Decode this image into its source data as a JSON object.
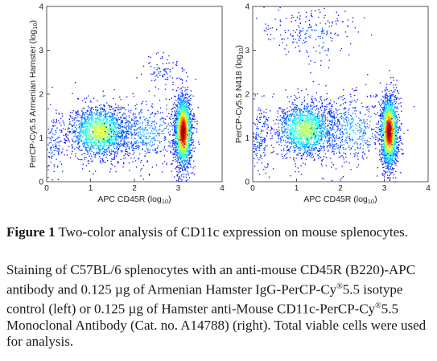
{
  "chart_data": [
    {
      "type": "scatter",
      "subtype": "flow-cytometry-density-dot-plot",
      "xlabel": "APC CD45R (log",
      "xlabel_sub": "10",
      "xlabel_end": ")",
      "ylabel": "PerCP-Cy5.5 Armenian Hamster (log",
      "ylabel_sub": "10",
      "ylabel_end": ")",
      "xlim": [
        0,
        4
      ],
      "ylim": [
        0,
        4
      ],
      "xticks": [
        "0",
        "1",
        "2",
        "3",
        "4"
      ],
      "yticks": [
        "0",
        "1",
        "2",
        "3",
        "4"
      ],
      "populations": [
        {
          "x": 1.2,
          "y": 1.15,
          "sx": 0.35,
          "sy": 0.3,
          "weight": 0.38,
          "density": 0.55
        },
        {
          "x": 3.1,
          "y": 1.15,
          "sx": 0.1,
          "sy": 0.42,
          "weight": 0.45,
          "density": 1.0
        },
        {
          "x": 2.2,
          "y": 1.1,
          "sx": 0.45,
          "sy": 0.35,
          "weight": 0.12,
          "density": 0.2
        },
        {
          "x": 2.6,
          "y": 2.5,
          "sx": 0.22,
          "sy": 0.25,
          "weight": 0.02,
          "density": 0.05
        },
        {
          "x": 0.15,
          "y": 0.9,
          "sx": 0.12,
          "sy": 0.4,
          "weight": 0.03,
          "density": 0.1
        }
      ]
    },
    {
      "type": "scatter",
      "subtype": "flow-cytometry-density-dot-plot",
      "xlabel": "APC CD45R (log",
      "xlabel_sub": "10",
      "xlabel_end": ")",
      "ylabel": "PerCP-Cy5.5 N418 (log",
      "ylabel_sub": "10",
      "ylabel_end": ")",
      "xlim": [
        0,
        4
      ],
      "ylim": [
        0,
        4
      ],
      "xticks": [
        "0",
        "1",
        "2",
        "3",
        "4"
      ],
      "yticks": [
        "0",
        "1",
        "2",
        "3",
        "4"
      ],
      "populations": [
        {
          "x": 1.2,
          "y": 1.2,
          "sx": 0.35,
          "sy": 0.32,
          "weight": 0.36,
          "density": 0.5
        },
        {
          "x": 3.1,
          "y": 1.15,
          "sx": 0.1,
          "sy": 0.42,
          "weight": 0.43,
          "density": 1.0
        },
        {
          "x": 2.2,
          "y": 1.2,
          "sx": 0.45,
          "sy": 0.4,
          "weight": 0.12,
          "density": 0.2
        },
        {
          "x": 1.3,
          "y": 3.4,
          "sx": 0.5,
          "sy": 0.3,
          "weight": 0.05,
          "density": 0.08
        },
        {
          "x": 0.15,
          "y": 1.0,
          "sx": 0.12,
          "sy": 0.45,
          "weight": 0.04,
          "density": 0.1
        }
      ]
    }
  ],
  "caption": {
    "title_bold": "Figure 1",
    "title_text": " Two-color analysis of CD11c expression on mouse splenocytes.",
    "desc_1": "Staining of C57BL/6 splenocytes with an anti-mouse CD45R (B220)-APC antibody and 0.125 µg of Armenian Hamster IgG-PerCP-Cy",
    "reg_1": "®",
    "desc_2": "5.5 isotype control (left) or  0.125 µg of Hamster anti-Mouse CD11c-PerCP-Cy",
    "reg_2": "®",
    "desc_3": "5.5 Monoclonal Antibody (Cat. no. A14788)  (right). Total viable cells were used for analysis."
  }
}
